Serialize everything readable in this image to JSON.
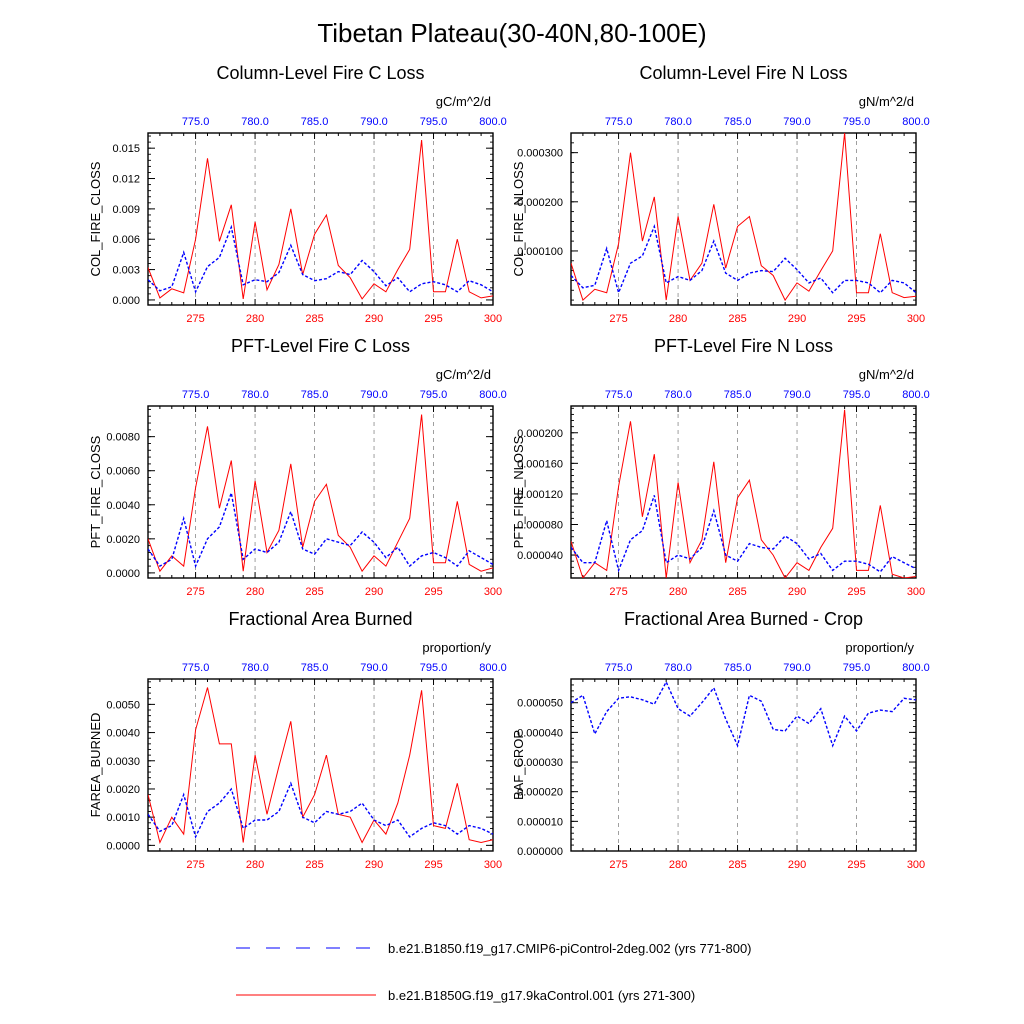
{
  "title": "Tibetan Plateau(30-40N,80-100E)",
  "colors": {
    "red": "#ff0000",
    "blue": "#0000ff",
    "axis": "#000000",
    "grid": "#888888"
  },
  "chart_data": [
    {
      "type": "line",
      "title": "Column-Level Fire C Loss",
      "ylabel": "COL_FIRE_CLOSS",
      "units": "gC/m^2/d",
      "ylim": [
        -0.0005,
        0.0165
      ],
      "yticks": [
        0,
        0.003,
        0.006,
        0.009,
        0.012,
        0.015
      ],
      "ytick_labels": [
        "0.000",
        "0.003",
        "0.006",
        "0.009",
        "0.012",
        "0.015"
      ],
      "xlim_bottom": [
        271,
        300
      ],
      "xticks_bottom": [
        275,
        280,
        285,
        290,
        295,
        300
      ],
      "xtick_labels_bottom": [
        "275",
        "280",
        "285",
        "290",
        "295",
        "300"
      ],
      "xticks_top_labels": [
        "775.0",
        "780.0",
        "785.0",
        "790.0",
        "795.0",
        "800.0"
      ],
      "x": [
        271,
        272,
        273,
        274,
        275,
        276,
        277,
        278,
        279,
        280,
        281,
        282,
        283,
        284,
        285,
        286,
        287,
        288,
        289,
        290,
        291,
        292,
        293,
        294,
        295,
        296,
        297,
        298,
        299,
        300
      ],
      "series": [
        {
          "name": "b.e21.B1850G.f19_g17.9kaControl.001 (yrs 271-300)",
          "color": "red",
          "values": [
            0.0032,
            0.0002,
            0.0011,
            0.0007,
            0.006,
            0.014,
            0.0058,
            0.0094,
            0.0001,
            0.0077,
            0.001,
            0.0035,
            0.009,
            0.0025,
            0.0065,
            0.0084,
            0.0034,
            0.0022,
            0.0001,
            0.0016,
            0.0008,
            0.003,
            0.005,
            0.0158,
            0.0008,
            0.0008,
            0.006,
            0.0008,
            0.0002,
            0.0004
          ]
        },
        {
          "name": "b.e21.B1850.f19_g17.CMIP6-piControl-2deg.002 (yrs 771-800)",
          "color": "blue",
          "values": [
            0.002,
            0.0009,
            0.0013,
            0.0047,
            0.0008,
            0.0033,
            0.0042,
            0.0072,
            0.0015,
            0.002,
            0.0018,
            0.0027,
            0.0054,
            0.0025,
            0.0019,
            0.0021,
            0.0028,
            0.0025,
            0.0039,
            0.0028,
            0.0014,
            0.0022,
            0.0008,
            0.0016,
            0.0018,
            0.0015,
            0.0008,
            0.0019,
            0.0015,
            0.0008
          ]
        }
      ]
    },
    {
      "type": "line",
      "title": "Column-Level Fire N Loss",
      "ylabel": "COL_FIRE_NLOSS",
      "units": "gN/m^2/d",
      "ylim": [
        -1e-05,
        0.00034
      ],
      "yticks": [
        0.0001,
        0.0002,
        0.0003
      ],
      "ytick_labels": [
        "0.000100",
        "0.000200",
        "0.000300"
      ],
      "xlim_bottom": [
        271,
        300
      ],
      "xticks_bottom": [
        275,
        280,
        285,
        290,
        295,
        300
      ],
      "xtick_labels_bottom": [
        "275",
        "280",
        "285",
        "290",
        "295",
        "300"
      ],
      "xticks_top_labels": [
        "775.0",
        "780.0",
        "785.0",
        "790.0",
        "795.0",
        "800.0"
      ],
      "x": [
        271,
        272,
        273,
        274,
        275,
        276,
        277,
        278,
        279,
        280,
        281,
        282,
        283,
        284,
        285,
        286,
        287,
        288,
        289,
        290,
        291,
        292,
        293,
        294,
        295,
        296,
        297,
        298,
        299,
        300
      ],
      "series": [
        {
          "name": "b.e21.B1850G.f19_g17.9kaControl.001 (yrs 271-300)",
          "color": "red",
          "values": [
            7.5e-05,
            0.0,
            2.2e-05,
            1.5e-05,
            0.000115,
            0.0003,
            0.00012,
            0.00021,
            0.0,
            0.00017,
            4e-05,
            7.5e-05,
            0.000195,
            6.5e-05,
            0.00015,
            0.00017,
            7e-05,
            5e-05,
            0.0,
            3.5e-05,
            1.8e-05,
            6e-05,
            0.0001,
            0.00034,
            1.5e-05,
            1.5e-05,
            0.000135,
            1.5e-05,
            5e-06,
            8e-06
          ]
        },
        {
          "name": "b.e21.B1850.f19_g17.CMIP6-piControl-2deg.002 (yrs 771-800)",
          "color": "blue",
          "values": [
            5e-05,
            2.5e-05,
            3e-05,
            0.000105,
            1.5e-05,
            7.5e-05,
            9e-05,
            0.00015,
            3.5e-05,
            4.8e-05,
            4e-05,
            6e-05,
            0.00012,
            5.5e-05,
            4e-05,
            5.5e-05,
            6e-05,
            5.8e-05,
            8.5e-05,
            6.2e-05,
            3.5e-05,
            4.5e-05,
            1.5e-05,
            4e-05,
            4e-05,
            3.5e-05,
            1.5e-05,
            4e-05,
            3.5e-05,
            1.5e-05
          ]
        }
      ]
    },
    {
      "type": "line",
      "title": "PFT-Level Fire C Loss",
      "ylabel": "PFT_FIRE_CLOSS",
      "units": "gC/m^2/d",
      "ylim": [
        -0.0003,
        0.0098
      ],
      "yticks": [
        0,
        0.002,
        0.004,
        0.006,
        0.008
      ],
      "ytick_labels": [
        "0.0000",
        "0.0020",
        "0.0040",
        "0.0060",
        "0.0080"
      ],
      "xlim_bottom": [
        271,
        300
      ],
      "xticks_bottom": [
        275,
        280,
        285,
        290,
        295,
        300
      ],
      "xtick_labels_bottom": [
        "275",
        "280",
        "285",
        "290",
        "295",
        "300"
      ],
      "xticks_top_labels": [
        "775.0",
        "780.0",
        "785.0",
        "790.0",
        "795.0",
        "800.0"
      ],
      "x": [
        271,
        272,
        273,
        274,
        275,
        276,
        277,
        278,
        279,
        280,
        281,
        282,
        283,
        284,
        285,
        286,
        287,
        288,
        289,
        290,
        291,
        292,
        293,
        294,
        295,
        296,
        297,
        298,
        299,
        300
      ],
      "series": [
        {
          "name": "b.e21.B1850G.f19_g17.9kaControl.001 (yrs 271-300)",
          "color": "red",
          "values": [
            0.002,
            0.0001,
            0.001,
            0.0004,
            0.005,
            0.0086,
            0.0038,
            0.0066,
            0.0001,
            0.0054,
            0.0012,
            0.0025,
            0.0064,
            0.0015,
            0.0042,
            0.0052,
            0.0022,
            0.0015,
            0.0001,
            0.001,
            0.0004,
            0.0018,
            0.0032,
            0.0093,
            0.0006,
            0.0006,
            0.0042,
            0.0005,
            0.0001,
            0.0003
          ]
        },
        {
          "name": "b.e21.B1850.f19_g17.CMIP6-piControl-2deg.002 (yrs 771-800)",
          "color": "blue",
          "values": [
            0.0014,
            0.0004,
            0.0008,
            0.0032,
            0.0004,
            0.002,
            0.0027,
            0.0047,
            0.0008,
            0.0014,
            0.0012,
            0.0018,
            0.0036,
            0.0014,
            0.0011,
            0.002,
            0.0018,
            0.0016,
            0.0024,
            0.0018,
            0.0009,
            0.0015,
            0.0004,
            0.001,
            0.0012,
            0.0009,
            0.0004,
            0.0013,
            0.0009,
            0.0005
          ]
        }
      ]
    },
    {
      "type": "line",
      "title": "PFT-Level Fire N Loss",
      "ylabel": "PFT_FIRE_NLOSS",
      "units": "gN/m^2/d",
      "ylim": [
        1e-05,
        0.000235
      ],
      "yticks": [
        4e-05,
        8e-05,
        0.00012,
        0.00016,
        0.0002
      ],
      "ytick_labels": [
        "0.000040",
        "0.000080",
        "0.000120",
        "0.000160",
        "0.000200"
      ],
      "xlim_bottom": [
        271,
        300
      ],
      "xticks_bottom": [
        275,
        280,
        285,
        290,
        295,
        300
      ],
      "xtick_labels_bottom": [
        "275",
        "280",
        "285",
        "290",
        "295",
        "300"
      ],
      "xticks_top_labels": [
        "775.0",
        "780.0",
        "785.0",
        "790.0",
        "795.0",
        "800.0"
      ],
      "x": [
        271,
        272,
        273,
        274,
        275,
        276,
        277,
        278,
        279,
        280,
        281,
        282,
        283,
        284,
        285,
        286,
        287,
        288,
        289,
        290,
        291,
        292,
        293,
        294,
        295,
        296,
        297,
        298,
        299,
        300
      ],
      "series": [
        {
          "name": "b.e21.B1850G.f19_g17.9kaControl.001 (yrs 271-300)",
          "color": "red",
          "values": [
            5.8e-05,
            1e-05,
            3e-05,
            2e-05,
            0.00013,
            0.000215,
            9e-05,
            0.000172,
            1e-05,
            0.000135,
            3e-05,
            6e-05,
            0.000162,
            3e-05,
            0.000115,
            0.000138,
            6e-05,
            4e-05,
            1e-05,
            3e-05,
            2e-05,
            5e-05,
            7.5e-05,
            0.00023,
            2e-05,
            2e-05,
            0.000105,
            1.5e-05,
            1e-05,
            1.2e-05
          ]
        },
        {
          "name": "b.e21.B1850.f19_g17.CMIP6-piControl-2deg.002 (yrs 771-800)",
          "color": "blue",
          "values": [
            5e-05,
            3e-05,
            3e-05,
            8.5e-05,
            2e-05,
            6e-05,
            7.2e-05,
            0.000118,
            3e-05,
            4e-05,
            3.5e-05,
            5e-05,
            9.8e-05,
            4e-05,
            3.2e-05,
            5.5e-05,
            5e-05,
            4.8e-05,
            6.5e-05,
            5.5e-05,
            3.5e-05,
            4.2e-05,
            2e-05,
            3.2e-05,
            3.2e-05,
            2.8e-05,
            1.8e-05,
            3.8e-05,
            3e-05,
            2.2e-05
          ]
        }
      ]
    },
    {
      "type": "line",
      "title": "Fractional Area Burned",
      "ylabel": "FAREA_BURNED",
      "units": "proportion/y",
      "ylim": [
        -0.0002,
        0.0059
      ],
      "yticks": [
        0,
        0.001,
        0.002,
        0.003,
        0.004,
        0.005
      ],
      "ytick_labels": [
        "0.0000",
        "0.0010",
        "0.0020",
        "0.0030",
        "0.0040",
        "0.0050"
      ],
      "xlim_bottom": [
        271,
        300
      ],
      "xticks_bottom": [
        275,
        280,
        285,
        290,
        295,
        300
      ],
      "xtick_labels_bottom": [
        "275",
        "280",
        "285",
        "290",
        "295",
        "300"
      ],
      "xticks_top_labels": [
        "775.0",
        "780.0",
        "785.0",
        "790.0",
        "795.0",
        "800.0"
      ],
      "x": [
        271,
        272,
        273,
        274,
        275,
        276,
        277,
        278,
        279,
        280,
        281,
        282,
        283,
        284,
        285,
        286,
        287,
        288,
        289,
        290,
        291,
        292,
        293,
        294,
        295,
        296,
        297,
        298,
        299,
        300
      ],
      "series": [
        {
          "name": "b.e21.B1850G.f19_g17.9kaControl.001 (yrs 271-300)",
          "color": "red",
          "values": [
            0.0018,
            0.0001,
            0.001,
            0.0004,
            0.0041,
            0.0056,
            0.0036,
            0.0036,
            0.0001,
            0.0032,
            0.0011,
            0.0028,
            0.0044,
            0.001,
            0.0018,
            0.0032,
            0.0011,
            0.001,
            0.0001,
            0.0009,
            0.0004,
            0.0015,
            0.0032,
            0.0055,
            0.0007,
            0.0006,
            0.0022,
            0.0002,
            0.0001,
            0.0002
          ]
        },
        {
          "name": "b.e21.B1850.f19_g17.CMIP6-piControl-2deg.002 (yrs 771-800)",
          "color": "blue",
          "values": [
            0.0011,
            0.0005,
            0.0007,
            0.0018,
            0.0003,
            0.0012,
            0.0015,
            0.002,
            0.0006,
            0.0009,
            0.0009,
            0.0012,
            0.0022,
            0.001,
            0.0008,
            0.0012,
            0.0011,
            0.0012,
            0.0015,
            0.0009,
            0.0007,
            0.0009,
            0.0003,
            0.0006,
            0.0008,
            0.0007,
            0.0004,
            0.0007,
            0.0006,
            0.0004
          ]
        }
      ]
    },
    {
      "type": "line",
      "title": "Fractional Area Burned - Crop",
      "ylabel": "BAF_CROP",
      "units": "proportion/y",
      "ylim": [
        0,
        5.8e-05
      ],
      "yticks": [
        0,
        1e-05,
        2e-05,
        3e-05,
        4e-05,
        5e-05
      ],
      "ytick_labels": [
        "0.000000",
        "0.000010",
        "0.000020",
        "0.000030",
        "0.000040",
        "0.000050"
      ],
      "xlim_bottom": [
        271,
        300
      ],
      "xticks_bottom": [
        275,
        280,
        285,
        290,
        295,
        300
      ],
      "xtick_labels_bottom": [
        "275",
        "280",
        "285",
        "290",
        "295",
        "300"
      ],
      "xticks_top_labels": [
        "775.0",
        "780.0",
        "785.0",
        "790.0",
        "795.0",
        "800.0"
      ],
      "x": [
        271,
        272,
        273,
        274,
        275,
        276,
        277,
        278,
        279,
        280,
        281,
        282,
        283,
        284,
        285,
        286,
        287,
        288,
        289,
        290,
        291,
        292,
        293,
        294,
        295,
        296,
        297,
        298,
        299,
        300
      ],
      "series": [
        {
          "name": "b.e21.B1850.f19_g17.CMIP6-piControl-2deg.002 (yrs 771-800)",
          "color": "blue",
          "values": [
            5e-05,
            5.25e-05,
            3.95e-05,
            4.7e-05,
            5.15e-05,
            5.2e-05,
            5.1e-05,
            4.95e-05,
            5.7e-05,
            4.8e-05,
            4.55e-05,
            5e-05,
            5.5e-05,
            4.45e-05,
            3.55e-05,
            5.25e-05,
            5.05e-05,
            4.1e-05,
            4.05e-05,
            4.55e-05,
            4.3e-05,
            4.8e-05,
            3.55e-05,
            4.55e-05,
            4.05e-05,
            4.65e-05,
            4.75e-05,
            4.7e-05,
            5.15e-05,
            5.1e-05
          ]
        }
      ]
    }
  ],
  "legend": [
    {
      "label": "b.e21.B1850.f19_g17.CMIP6-piControl-2deg.002 (yrs 771-800)",
      "color": "blue",
      "style": "dashed"
    },
    {
      "label": "b.e21.B1850G.f19_g17.9kaControl.001 (yrs 271-300)",
      "color": "red",
      "style": "solid"
    }
  ]
}
